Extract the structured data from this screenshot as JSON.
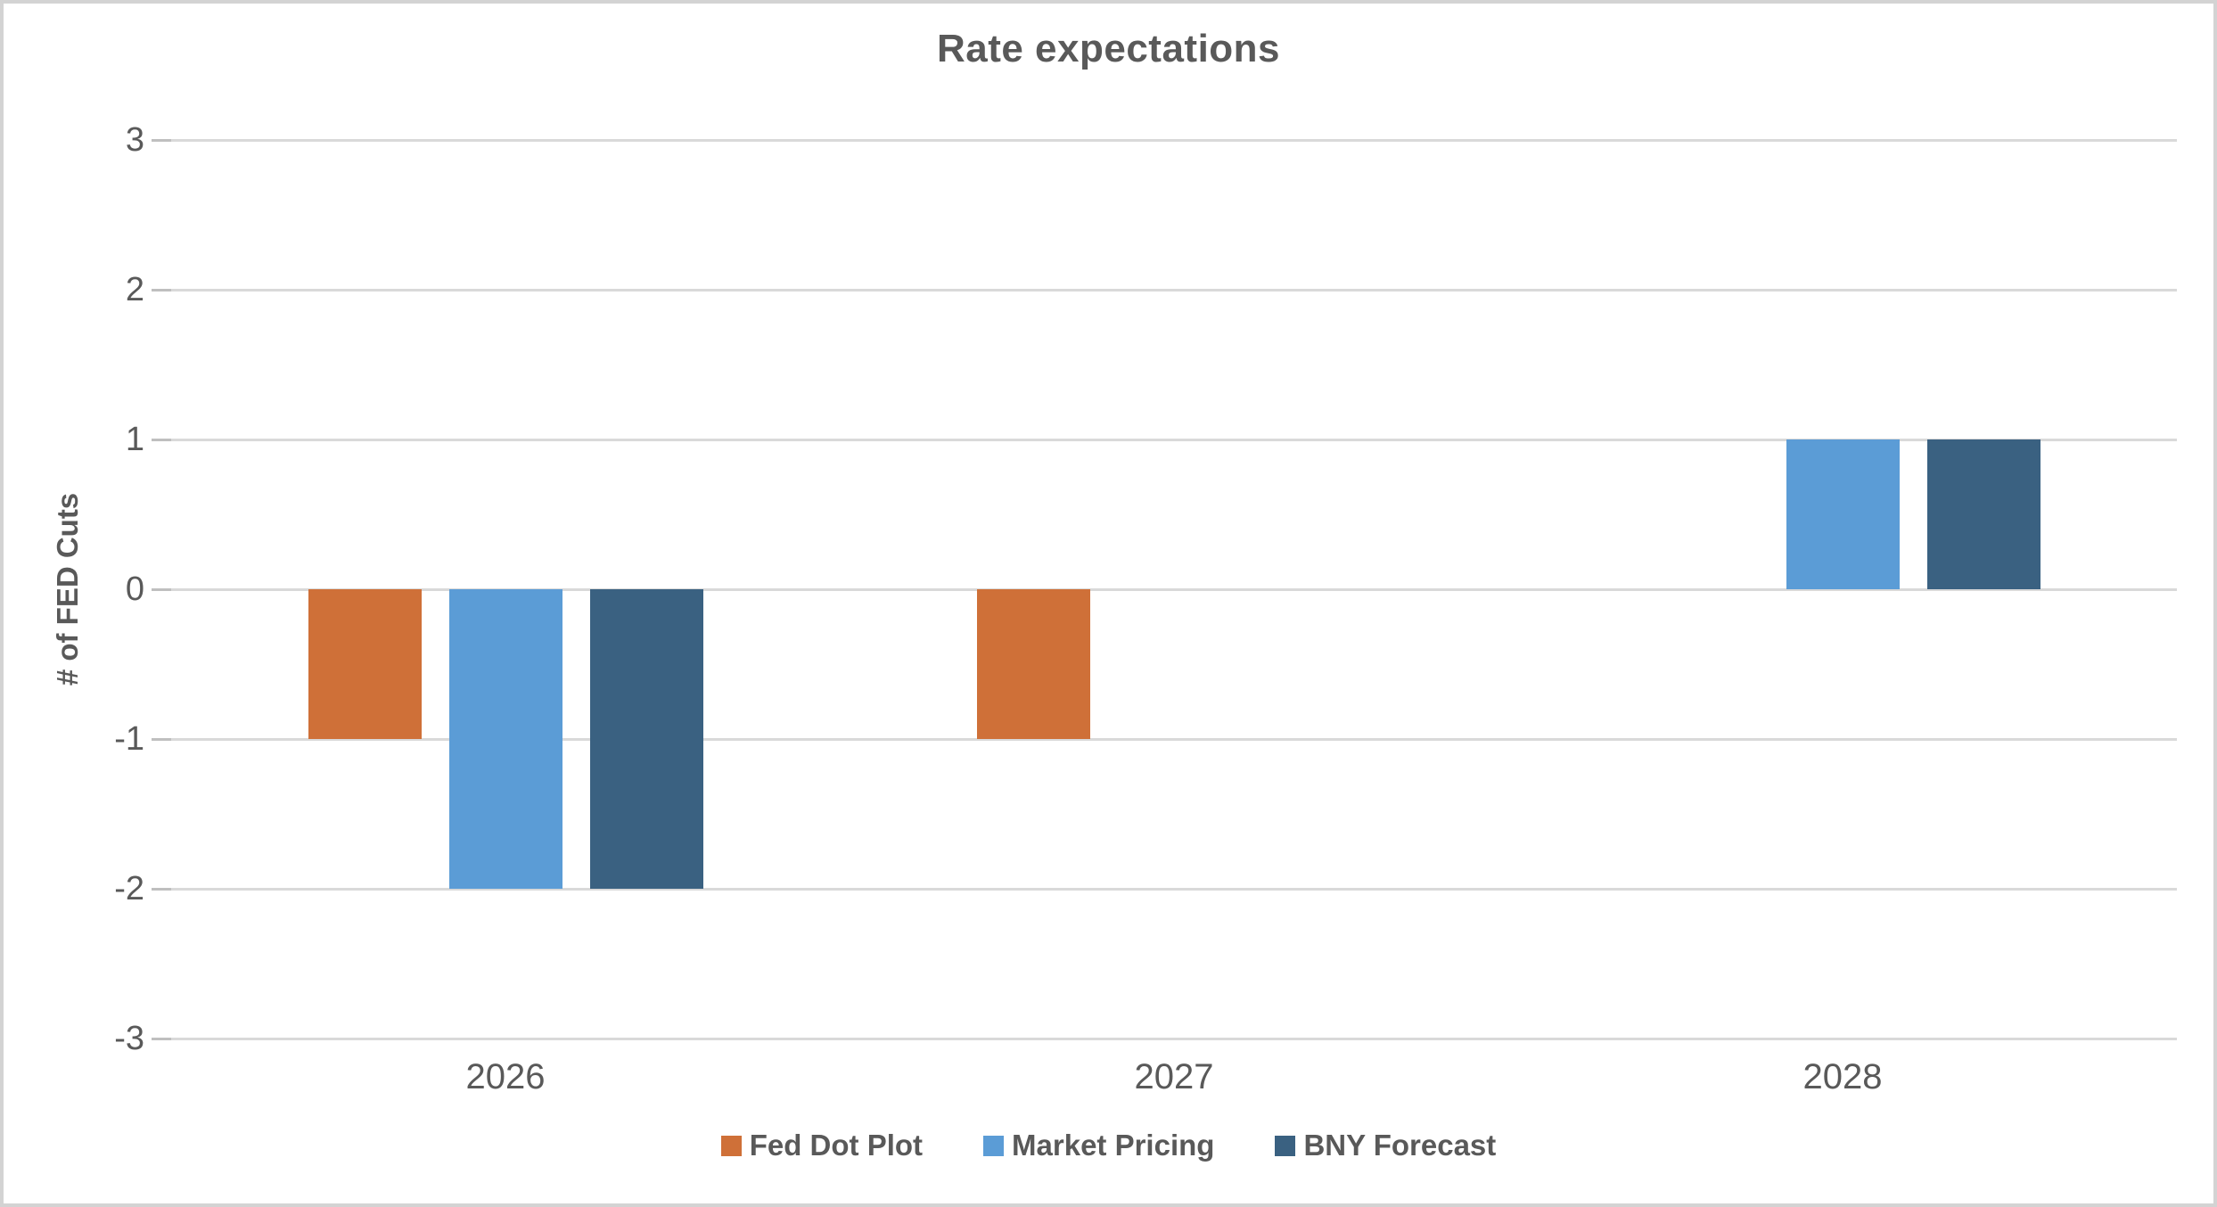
{
  "chart_data": {
    "type": "bar",
    "title": "Rate expectations",
    "xlabel": "",
    "ylabel": "# of FED Cuts",
    "categories": [
      "2026",
      "2027",
      "2028"
    ],
    "series": [
      {
        "name": "Fed Dot Plot",
        "color": "#CF7038",
        "values": [
          -1,
          -1,
          0
        ]
      },
      {
        "name": "Market Pricing",
        "color": "#5B9CD6",
        "values": [
          -2,
          0,
          1
        ]
      },
      {
        "name": "BNY Forecast",
        "color": "#3A6181",
        "values": [
          -2,
          0,
          1
        ]
      }
    ],
    "ylim": [
      -3,
      3
    ],
    "yticks": [
      3,
      2,
      1,
      0,
      -1,
      -2,
      -3
    ],
    "grid": true,
    "legend_position": "bottom"
  },
  "colors": {
    "text": "#595959",
    "gridline": "#D9D9D9",
    "tick": "#BFBFBF",
    "frame_border": "#D3D3D3",
    "background": "#FFFFFF"
  }
}
